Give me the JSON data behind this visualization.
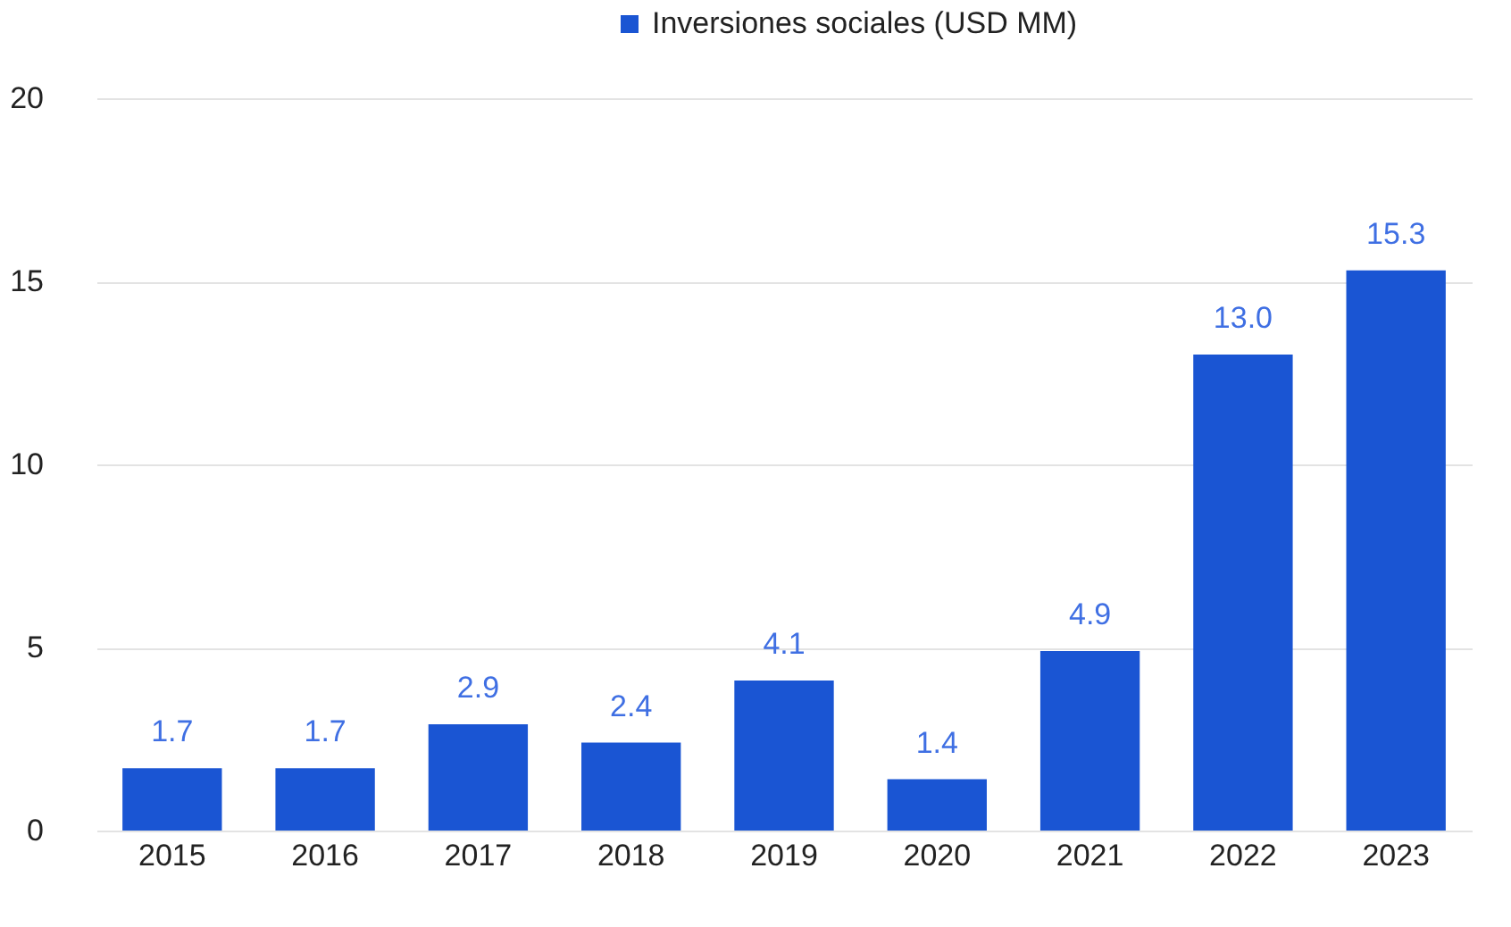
{
  "chart_data": {
    "type": "bar",
    "categories": [
      "2015",
      "2016",
      "2017",
      "2018",
      "2019",
      "2020",
      "2021",
      "2022",
      "2023"
    ],
    "series": [
      {
        "name": "Inversiones sociales (USD MM)",
        "color": "#1a55d3",
        "values": [
          1.7,
          1.7,
          2.9,
          2.4,
          4.1,
          1.4,
          4.9,
          13.0,
          15.3
        ]
      }
    ],
    "value_labels": [
      "1.7",
      "1.7",
      "2.9",
      "2.4",
      "4.1",
      "1.4",
      "4.9",
      "13.0",
      "15.3"
    ],
    "ylim": [
      0,
      20
    ],
    "yticks": [
      0,
      5,
      10,
      15,
      20
    ],
    "grid": "y",
    "legend": "top"
  }
}
